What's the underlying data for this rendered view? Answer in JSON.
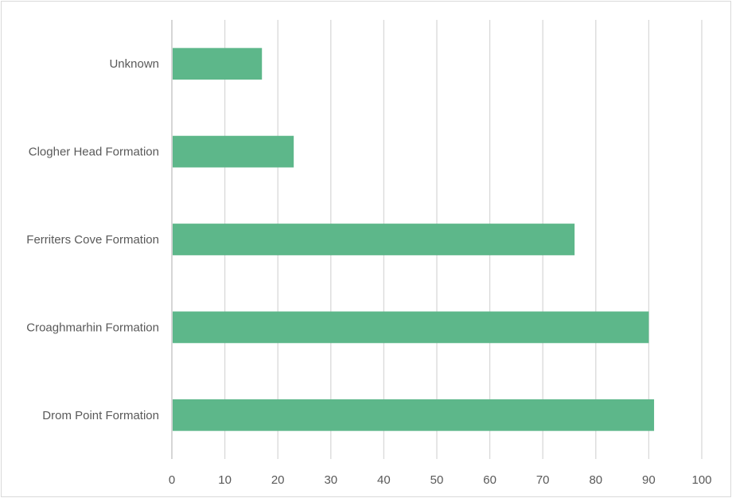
{
  "chart_data": {
    "type": "bar",
    "orientation": "horizontal",
    "categories": [
      "Unknown",
      "Clogher Head Formation",
      "Ferriters Cove Formation",
      "Croaghmarhin Formation",
      "Drom Point Formation"
    ],
    "values": [
      17,
      23,
      76,
      90,
      91
    ],
    "title": "",
    "xlabel": "",
    "ylabel": "",
    "xlim": [
      0,
      100
    ],
    "xticks": [
      "0",
      "10",
      "20",
      "30",
      "40",
      "50",
      "60",
      "70",
      "80",
      "90",
      "100"
    ],
    "grid": "vertical",
    "legend": "none",
    "bar_color": "#5db78a",
    "grid_color": "#d9d9d9",
    "axis_color": "#bfbfbf",
    "text_color": "#595959"
  }
}
